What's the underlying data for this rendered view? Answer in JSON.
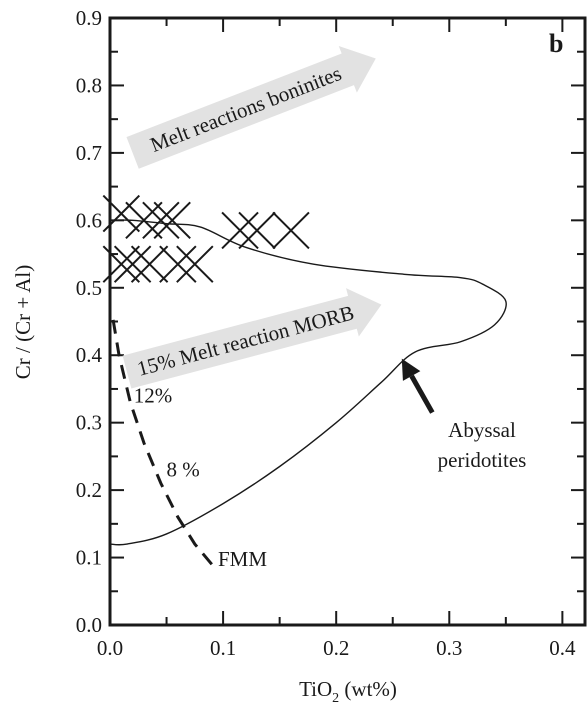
{
  "chart_data": {
    "type": "scatter",
    "panel_label": "b",
    "xlabel_main": "TiO",
    "xlabel_sub": "2",
    "xlabel_unit": " (wt%)",
    "ylabel": "Cr / (Cr + Al)",
    "xlim": [
      0.0,
      0.42
    ],
    "ylim": [
      0.0,
      0.9
    ],
    "x_ticks": [
      0.0,
      0.1,
      0.2,
      0.3,
      0.4
    ],
    "x_tick_labels": [
      "0.0",
      "0.1",
      "0.2",
      "0.3",
      "0.4"
    ],
    "y_ticks": [
      0.0,
      0.1,
      0.2,
      0.3,
      0.4,
      0.5,
      0.6,
      0.7,
      0.8,
      0.9
    ],
    "y_tick_labels": [
      "0.0",
      "0.1",
      "0.2",
      "0.3",
      "0.4",
      "0.5",
      "0.6",
      "0.7",
      "0.8",
      "0.9"
    ],
    "series": [
      {
        "marker": "X",
        "points": [
          {
            "x": 0.01,
            "y": 0.61
          },
          {
            "x": 0.03,
            "y": 0.6
          },
          {
            "x": 0.045,
            "y": 0.6
          },
          {
            "x": 0.055,
            "y": 0.6
          },
          {
            "x": 0.115,
            "y": 0.585
          },
          {
            "x": 0.13,
            "y": 0.585
          },
          {
            "x": 0.16,
            "y": 0.585
          },
          {
            "x": 0.01,
            "y": 0.535
          },
          {
            "x": 0.02,
            "y": 0.535
          },
          {
            "x": 0.035,
            "y": 0.535
          },
          {
            "x": 0.06,
            "y": 0.535
          },
          {
            "x": 0.075,
            "y": 0.535
          }
        ]
      }
    ],
    "field": {
      "label_line1": "Abyssal",
      "label_line2": "peridotites",
      "outline": [
        [
          0.0,
          0.6
        ],
        [
          0.02,
          0.6
        ],
        [
          0.05,
          0.595
        ],
        [
          0.08,
          0.59
        ],
        [
          0.12,
          0.56
        ],
        [
          0.18,
          0.535
        ],
        [
          0.26,
          0.52
        ],
        [
          0.31,
          0.515
        ],
        [
          0.33,
          0.505
        ],
        [
          0.35,
          0.48
        ],
        [
          0.34,
          0.445
        ],
        [
          0.31,
          0.42
        ],
        [
          0.27,
          0.405
        ],
        [
          0.24,
          0.36
        ],
        [
          0.2,
          0.3
        ],
        [
          0.15,
          0.235
        ],
        [
          0.1,
          0.18
        ],
        [
          0.05,
          0.135
        ],
        [
          0.015,
          0.12
        ],
        [
          0.0,
          0.12
        ]
      ]
    },
    "melting_trend": {
      "end_label": "FMM",
      "points": [
        [
          0.09,
          0.09
        ],
        [
          0.075,
          0.12
        ],
        [
          0.06,
          0.16
        ],
        [
          0.045,
          0.21
        ],
        [
          0.03,
          0.27
        ],
        [
          0.018,
          0.33
        ],
        [
          0.008,
          0.4
        ],
        [
          0.002,
          0.46
        ]
      ],
      "labels": [
        {
          "text": "12%",
          "x": 0.021,
          "y": 0.33
        },
        {
          "text": "8 %",
          "x": 0.05,
          "y": 0.22
        }
      ]
    },
    "arrows": [
      {
        "text": "Melt reactions boninites",
        "start": [
          0.02,
          0.7
        ],
        "end": [
          0.235,
          0.84
        ]
      },
      {
        "text": "15% Melt reaction MORB",
        "start": [
          0.015,
          0.375
        ],
        "end": [
          0.24,
          0.475
        ]
      }
    ],
    "pointer": {
      "start": [
        0.285,
        0.315
      ],
      "end": [
        0.258,
        0.395
      ]
    }
  }
}
